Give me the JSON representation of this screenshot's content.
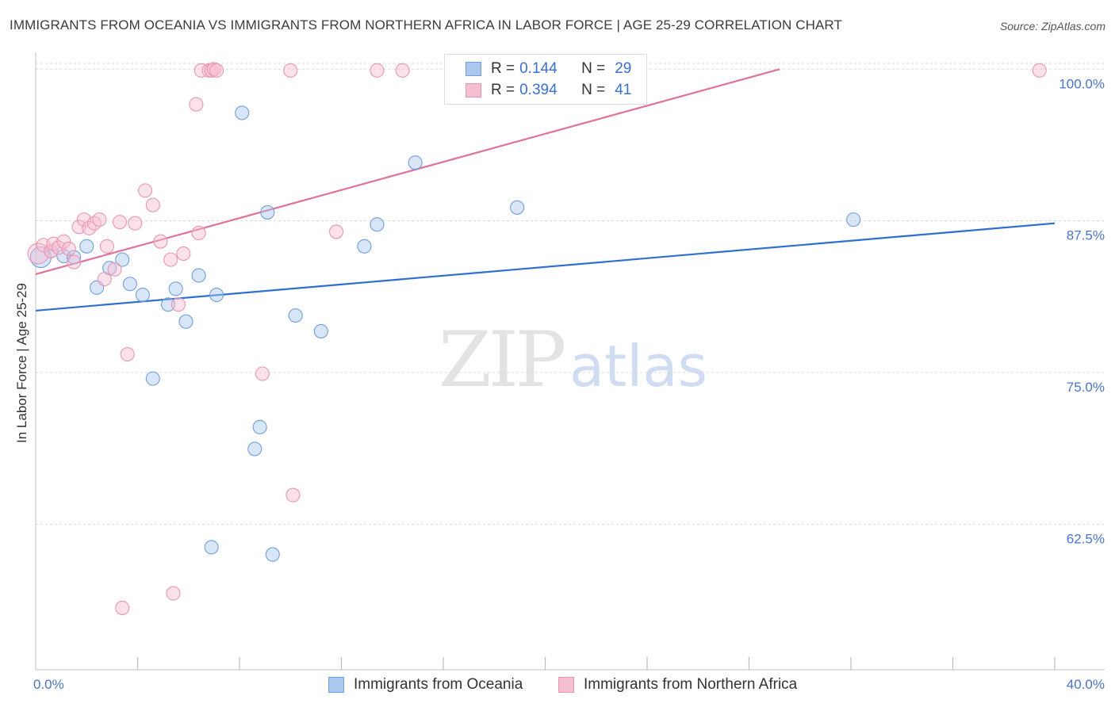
{
  "header": {
    "title": "IMMIGRANTS FROM OCEANIA VS IMMIGRANTS FROM NORTHERN AFRICA IN LABOR FORCE | AGE 25-29 CORRELATION CHART",
    "source": "Source: ZipAtlas.com"
  },
  "watermark": {
    "zip": "ZIP",
    "atlas": "atlas"
  },
  "legend": {
    "rows": [
      {
        "r_label": "R =",
        "r_value": "0.144",
        "n_label": "N =",
        "n_value": "29"
      },
      {
        "r_label": "R =",
        "r_value": "0.394",
        "n_label": "N =",
        "n_value": "41"
      }
    ]
  },
  "bottom_legend": {
    "oceania": "Immigrants from Oceania",
    "nafrica": "Immigrants from Northern Africa"
  },
  "colors": {
    "oceania_fill": "#aac8ee",
    "oceania_stroke": "#6f9fdc",
    "oceania_line": "#2f6fd0",
    "nafrica_fill": "#f6bfd0",
    "nafrica_stroke": "#e995b1",
    "nafrica_line": "#e0719a",
    "grid": "#d9d9d9",
    "tick_text": "#4a74c8"
  },
  "chart_data": {
    "type": "scatter",
    "title": "IMMIGRANTS FROM OCEANIA VS IMMIGRANTS FROM NORTHERN AFRICA IN LABOR FORCE | AGE 25-29 CORRELATION CHART",
    "xlabel": "",
    "ylabel": "In Labor Force | Age 25-29",
    "xlim": [
      0,
      40
    ],
    "ylim": [
      50.5,
      101
    ],
    "x_tick_labels": [
      {
        "x": 0,
        "label": "0.0%"
      },
      {
        "x": 40,
        "label": "40.0%"
      }
    ],
    "y_tick_labels": [
      {
        "y": 100,
        "label": "100.0%"
      },
      {
        "y": 87.5,
        "label": "87.5%"
      },
      {
        "y": 75,
        "label": "75.0%"
      },
      {
        "y": 62.5,
        "label": "62.5%"
      }
    ],
    "series": [
      {
        "name": "Immigrants from Oceania",
        "points": [
          [
            0.2,
            84.5
          ],
          [
            0.6,
            85.0
          ],
          [
            1.1,
            84.6
          ],
          [
            1.5,
            84.5
          ],
          [
            2.0,
            85.4
          ],
          [
            2.4,
            82.0
          ],
          [
            2.9,
            83.6
          ],
          [
            3.4,
            84.3
          ],
          [
            3.7,
            82.3
          ],
          [
            4.2,
            81.4
          ],
          [
            4.6,
            74.5
          ],
          [
            5.2,
            80.6
          ],
          [
            5.5,
            81.9
          ],
          [
            5.9,
            79.2
          ],
          [
            6.4,
            83.0
          ],
          [
            6.9,
            60.6
          ],
          [
            7.1,
            81.4
          ],
          [
            8.1,
            96.4
          ],
          [
            8.6,
            68.7
          ],
          [
            8.8,
            70.5
          ],
          [
            9.1,
            88.2
          ],
          [
            9.3,
            60.0
          ],
          [
            10.2,
            79.7
          ],
          [
            11.2,
            78.4
          ],
          [
            12.9,
            85.4
          ],
          [
            13.4,
            87.2
          ],
          [
            14.9,
            92.3
          ],
          [
            18.9,
            88.6
          ],
          [
            32.1,
            87.6
          ]
        ],
        "trend": {
          "x": [
            0,
            40
          ],
          "y": [
            80.1,
            87.3
          ]
        }
      },
      {
        "name": "Immigrants from Northern Africa",
        "points": [
          [
            0.1,
            84.8
          ],
          [
            0.3,
            85.5
          ],
          [
            0.6,
            85.0
          ],
          [
            0.7,
            85.6
          ],
          [
            0.9,
            85.3
          ],
          [
            1.1,
            85.8
          ],
          [
            1.3,
            85.2
          ],
          [
            1.5,
            84.1
          ],
          [
            1.7,
            87.0
          ],
          [
            1.9,
            87.6
          ],
          [
            2.1,
            86.9
          ],
          [
            2.3,
            87.3
          ],
          [
            2.5,
            87.6
          ],
          [
            2.7,
            82.7
          ],
          [
            2.8,
            85.4
          ],
          [
            3.1,
            83.5
          ],
          [
            3.3,
            87.4
          ],
          [
            3.6,
            76.5
          ],
          [
            3.9,
            87.3
          ],
          [
            3.4,
            55.6
          ],
          [
            4.3,
            90.0
          ],
          [
            4.6,
            88.8
          ],
          [
            4.9,
            85.8
          ],
          [
            5.3,
            84.3
          ],
          [
            5.4,
            56.8
          ],
          [
            5.6,
            80.6
          ],
          [
            5.8,
            84.8
          ],
          [
            6.3,
            97.1
          ],
          [
            6.4,
            86.5
          ],
          [
            6.5,
            99.9
          ],
          [
            6.8,
            99.9
          ],
          [
            6.9,
            99.9
          ],
          [
            7.0,
            100.0
          ],
          [
            7.1,
            99.9
          ],
          [
            8.9,
            74.9
          ],
          [
            10.0,
            99.9
          ],
          [
            10.1,
            64.9
          ],
          [
            11.8,
            86.6
          ],
          [
            13.4,
            99.9
          ],
          [
            14.4,
            99.9
          ],
          [
            39.4,
            99.9
          ]
        ],
        "trend": {
          "x": [
            0,
            29.2
          ],
          "y": [
            83.1,
            100.0
          ]
        }
      }
    ]
  }
}
